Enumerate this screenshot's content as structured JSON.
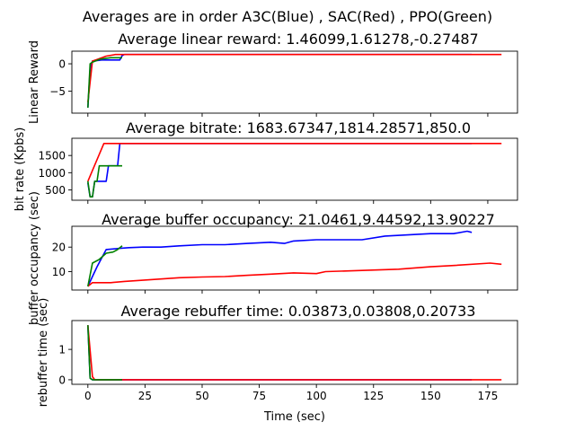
{
  "suptitle": "Averages are in order A3C(Blue) , SAC(Red) , PPO(Green)",
  "xlabel": "Time (sec)",
  "colors": {
    "A3C": "#0000ff",
    "SAC": "#ff0000",
    "PPO": "#008000"
  },
  "chart_data": [
    {
      "type": "line",
      "title": "Average linear reward: 1.46099,1.61278,-0.27487",
      "ylabel": "Linear Reward",
      "xlim": [
        -7,
        188
      ],
      "ylim": [
        -9,
        2.3
      ],
      "xticks": [
        0,
        25,
        50,
        75,
        100,
        125,
        150,
        175
      ],
      "yticks": [
        -5,
        0
      ],
      "show_xtick_labels": false,
      "series": [
        {
          "key": "A3C",
          "x": [
            0,
            1,
            2,
            4,
            6,
            10,
            14,
            15,
            16,
            30,
            60,
            100,
            140,
            168
          ],
          "y": [
            -8,
            -1,
            0.5,
            0.6,
            0.7,
            0.7,
            0.7,
            1.5,
            1.7,
            1.7,
            1.7,
            1.7,
            1.7,
            1.7
          ]
        },
        {
          "key": "SAC",
          "x": [
            0,
            2,
            4,
            8,
            12,
            20,
            40,
            80,
            120,
            160,
            181
          ],
          "y": [
            -7,
            0.5,
            0.8,
            1.4,
            1.7,
            1.7,
            1.7,
            1.7,
            1.7,
            1.7,
            1.7
          ]
        },
        {
          "key": "PPO",
          "x": [
            0,
            1,
            2,
            5,
            8,
            10,
            15
          ],
          "y": [
            -8,
            0,
            0.3,
            0.8,
            1.0,
            1.1,
            1.1
          ]
        }
      ]
    },
    {
      "type": "line",
      "title": "Average bitrate: 1683.67347,1814.28571,850.0",
      "ylabel": "bit rate (Kpbs)",
      "xlim": [
        -7,
        188
      ],
      "ylim": [
        200,
        2000
      ],
      "xticks": [
        0,
        25,
        50,
        75,
        100,
        125,
        150,
        175
      ],
      "yticks": [
        500,
        1000,
        1500
      ],
      "show_xtick_labels": false,
      "series": [
        {
          "key": "A3C",
          "x": [
            0,
            1,
            2,
            3,
            4,
            8,
            9,
            10,
            13,
            14,
            168
          ],
          "y": [
            700,
            300,
            300,
            750,
            750,
            750,
            1200,
            1200,
            1200,
            1850,
            1850
          ]
        },
        {
          "key": "SAC",
          "x": [
            0,
            7,
            181
          ],
          "y": [
            750,
            1850,
            1850
          ]
        },
        {
          "key": "PPO",
          "x": [
            0,
            1,
            2,
            3,
            4,
            5,
            6,
            15
          ],
          "y": [
            750,
            300,
            300,
            750,
            750,
            1200,
            1200,
            1200
          ]
        }
      ]
    },
    {
      "type": "line",
      "title": "Average buffer occupancy: 21.0461,9.44592,13.90227",
      "ylabel": "buffer occupancy (sec)",
      "xlim": [
        -7,
        188
      ],
      "ylim": [
        2.5,
        28.5
      ],
      "xticks": [
        0,
        25,
        50,
        75,
        100,
        125,
        150,
        175
      ],
      "yticks": [
        10,
        20
      ],
      "show_xtick_labels": false,
      "series": [
        {
          "key": "A3C",
          "x": [
            0,
            4,
            8,
            14,
            18,
            24,
            32,
            40,
            50,
            60,
            70,
            80,
            86,
            90,
            100,
            110,
            120,
            130,
            140,
            150,
            160,
            166,
            168
          ],
          "y": [
            4,
            12,
            19,
            19.5,
            19.8,
            20,
            20,
            20.5,
            21,
            21,
            21.5,
            22,
            21.5,
            22.5,
            23,
            23,
            23,
            24.5,
            25,
            25.5,
            25.5,
            26.5,
            26
          ]
        },
        {
          "key": "SAC",
          "x": [
            0,
            2,
            10,
            16,
            24,
            32,
            40,
            50,
            60,
            70,
            80,
            90,
            100,
            104,
            120,
            136,
            150,
            160,
            176,
            181
          ],
          "y": [
            4,
            5.5,
            5.5,
            6,
            6.5,
            7,
            7.5,
            7.8,
            8,
            8.5,
            9,
            9.5,
            9.2,
            10,
            10.5,
            11,
            12,
            12.5,
            13.5,
            13
          ]
        },
        {
          "key": "PPO",
          "x": [
            0,
            2,
            5,
            8,
            11,
            13,
            15
          ],
          "y": [
            4,
            13.5,
            15,
            17.5,
            18,
            19,
            20.5
          ]
        }
      ]
    },
    {
      "type": "line",
      "title": "Average rebuffer time: 0.03873,0.03808,0.20733",
      "ylabel": "rebuffer time (sec)",
      "xlim": [
        -7,
        188
      ],
      "ylim": [
        -0.15,
        1.95
      ],
      "xticks": [
        0,
        25,
        50,
        75,
        100,
        125,
        150,
        175
      ],
      "yticks": [
        0,
        1
      ],
      "show_xtick_labels": true,
      "series": [
        {
          "key": "A3C",
          "x": [
            0,
            1,
            2,
            168
          ],
          "y": [
            1.8,
            0.05,
            0,
            0
          ]
        },
        {
          "key": "SAC",
          "x": [
            0,
            2,
            3,
            181
          ],
          "y": [
            1.8,
            0.1,
            0,
            0
          ]
        },
        {
          "key": "PPO",
          "x": [
            0,
            1,
            2,
            15
          ],
          "y": [
            1.8,
            0.05,
            0,
            0
          ]
        }
      ]
    }
  ]
}
